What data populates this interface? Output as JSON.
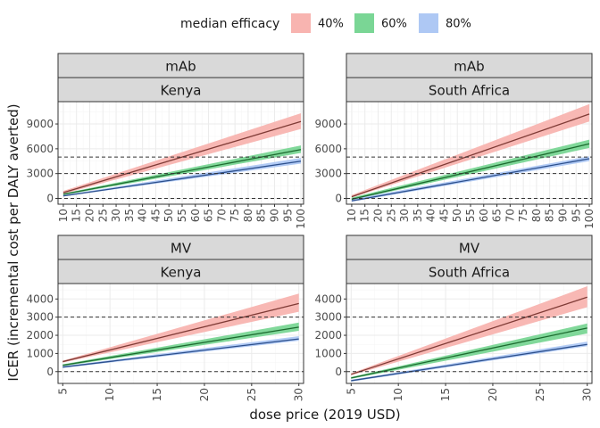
{
  "chart_data": {
    "type": "line",
    "title": "",
    "xlabel": "dose price (2019 USD)",
    "ylabel": "ICER (incremental cost per DALY averted)",
    "legend": {
      "title": "median efficacy",
      "position": "top",
      "items": [
        {
          "label": "40%",
          "fill": "#f8b4b0",
          "line": "#7f3b36"
        },
        {
          "label": "60%",
          "fill": "#7ad695",
          "line": "#1c6b2f"
        },
        {
          "label": "80%",
          "fill": "#aec8f4",
          "line": "#2c4f8c"
        }
      ]
    },
    "panels": [
      {
        "product": "mAb",
        "country": "Kenya",
        "xlim": [
          8,
          101
        ],
        "ylim": [
          -700,
          11700
        ],
        "xticks": [
          10,
          15,
          20,
          25,
          30,
          35,
          40,
          45,
          50,
          55,
          60,
          65,
          70,
          75,
          80,
          85,
          90,
          95,
          100
        ],
        "yticks": [
          0,
          3000,
          6000,
          9000
        ],
        "ref_lines": [
          0,
          3000,
          5000
        ],
        "series": [
          {
            "efficacy": "40%",
            "x": [
              10,
              100
            ],
            "y": [
              700,
              9300
            ],
            "lower": [
              550,
              8400
            ],
            "upper": [
              900,
              10300
            ]
          },
          {
            "efficacy": "60%",
            "x": [
              10,
              100
            ],
            "y": [
              500,
              5900
            ],
            "lower": [
              400,
              5500
            ],
            "upper": [
              600,
              6400
            ]
          },
          {
            "efficacy": "80%",
            "x": [
              10,
              100
            ],
            "y": [
              300,
              4500
            ],
            "lower": [
              250,
              4200
            ],
            "upper": [
              400,
              4900
            ]
          }
        ]
      },
      {
        "product": "mAb",
        "country": "South Africa",
        "xlim": [
          8,
          101
        ],
        "ylim": [
          -700,
          11700
        ],
        "xticks": [
          10,
          15,
          20,
          25,
          30,
          35,
          40,
          45,
          50,
          55,
          60,
          65,
          70,
          75,
          80,
          85,
          90,
          95,
          100
        ],
        "yticks": [
          0,
          3000,
          6000,
          9000
        ],
        "ref_lines": [
          0,
          3000,
          5000
        ],
        "series": [
          {
            "efficacy": "40%",
            "x": [
              10,
              100
            ],
            "y": [
              200,
              10200
            ],
            "lower": [
              100,
              9300
            ],
            "upper": [
              400,
              11400
            ]
          },
          {
            "efficacy": "60%",
            "x": [
              10,
              100
            ],
            "y": [
              -100,
              6600
            ],
            "lower": [
              -200,
              6100
            ],
            "upper": [
              100,
              7100
            ]
          },
          {
            "efficacy": "80%",
            "x": [
              10,
              100
            ],
            "y": [
              -300,
              4800
            ],
            "lower": [
              -400,
              4500
            ],
            "upper": [
              -100,
              5100
            ]
          }
        ]
      },
      {
        "product": "MV",
        "country": "Kenya",
        "xlim": [
          4.5,
          30.5
        ],
        "ylim": [
          -650,
          4850
        ],
        "xticks": [
          5,
          10,
          15,
          20,
          25,
          30
        ],
        "yticks": [
          0,
          1000,
          2000,
          3000,
          4000
        ],
        "ref_lines": [
          0,
          3000
        ],
        "series": [
          {
            "efficacy": "40%",
            "x": [
              5,
              30
            ],
            "y": [
              550,
              3750
            ],
            "lower": [
              500,
              3300
            ],
            "upper": [
              600,
              4300
            ]
          },
          {
            "efficacy": "60%",
            "x": [
              5,
              30
            ],
            "y": [
              350,
              2450
            ],
            "lower": [
              300,
              2250
            ],
            "upper": [
              400,
              2700
            ]
          },
          {
            "efficacy": "80%",
            "x": [
              5,
              30
            ],
            "y": [
              250,
              1800
            ],
            "lower": [
              200,
              1700
            ],
            "upper": [
              300,
              1950
            ]
          }
        ]
      },
      {
        "product": "MV",
        "country": "South Africa",
        "xlim": [
          4.5,
          30.5
        ],
        "ylim": [
          -650,
          4850
        ],
        "xticks": [
          5,
          10,
          15,
          20,
          25,
          30
        ],
        "yticks": [
          0,
          1000,
          2000,
          3000,
          4000
        ],
        "ref_lines": [
          0,
          3000
        ],
        "series": [
          {
            "efficacy": "40%",
            "x": [
              5,
              30
            ],
            "y": [
              -150,
              4100
            ],
            "lower": [
              -200,
              3550
            ],
            "upper": [
              -100,
              4700
            ]
          },
          {
            "efficacy": "60%",
            "x": [
              5,
              30
            ],
            "y": [
              -350,
              2400
            ],
            "lower": [
              -400,
              2100
            ],
            "upper": [
              -300,
              2650
            ]
          },
          {
            "efficacy": "80%",
            "x": [
              5,
              30
            ],
            "y": [
              -500,
              1500
            ],
            "lower": [
              -550,
              1400
            ],
            "upper": [
              -450,
              1650
            ]
          }
        ]
      }
    ]
  }
}
